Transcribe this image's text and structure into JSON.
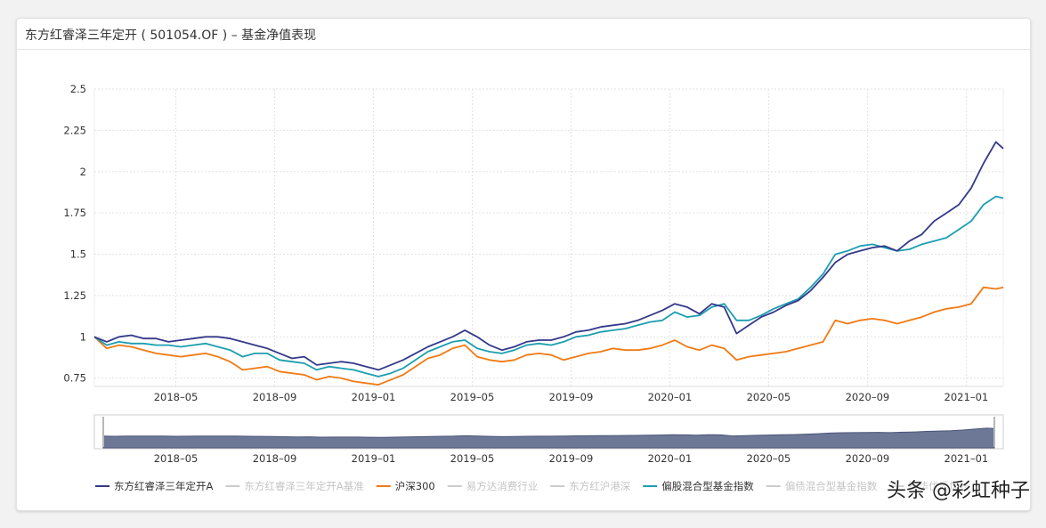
{
  "header": {
    "title": "东方红睿泽三年定开 ( 501054.OF ) – 基金净值表现"
  },
  "watermark": "头条 @彩虹种子",
  "colors": {
    "fund": "#34398a",
    "benchmark": "#cccccc",
    "hs300": "#f07a14",
    "consumer": "#cccccc",
    "hk": "#cccccc",
    "mixed_index": "#1c9eb0",
    "bond_mixed": "#cccccc",
    "yinhua": "#cccccc",
    "grid": "#e3e3e3",
    "axis_text": "#333333"
  },
  "chart_data": {
    "type": "line",
    "yticks": [
      "2.5",
      "2.25",
      "2",
      "1.75",
      "1.5",
      "1.25",
      "1",
      "0.75"
    ],
    "ylim": [
      0.7,
      2.5
    ],
    "xticks": [
      "2018–05",
      "2018–09",
      "2019–01",
      "2019–05",
      "2019–09",
      "2020–01",
      "2020–05",
      "2020–09",
      "2021–01"
    ],
    "xtick_months": [
      4,
      8,
      12,
      16,
      20,
      24,
      28,
      32,
      36
    ],
    "xlim_months": [
      0.7,
      37.5
    ],
    "grid": true,
    "legend_position": "bottom",
    "legend": [
      {
        "name": "东方红睿泽三年定开A",
        "active": true,
        "key": "fund"
      },
      {
        "name": "东方红睿泽三年定开A基准",
        "active": false,
        "key": "benchmark"
      },
      {
        "name": "沪深300",
        "active": true,
        "key": "hs300"
      },
      {
        "name": "易方达消费行业",
        "active": false,
        "key": "consumer"
      },
      {
        "name": "东方红沪港深",
        "active": false,
        "key": "hk"
      },
      {
        "name": "偏股混合型基金指数",
        "active": true,
        "key": "mixed_index"
      },
      {
        "name": "偏债混合型基金指数",
        "active": false,
        "key": "bond_mixed"
      },
      {
        "name": "银华优质增长",
        "active": false,
        "key": "yinhua"
      }
    ],
    "series": [
      {
        "name": "东方红睿泽三年定开A",
        "key": "fund",
        "x": [
          0.7,
          1.2,
          1.7,
          2.2,
          2.7,
          3.2,
          3.7,
          4.2,
          4.7,
          5.2,
          5.7,
          6.2,
          6.7,
          7.2,
          7.7,
          8.2,
          8.7,
          9.2,
          9.7,
          10.2,
          10.7,
          11.2,
          11.7,
          12.2,
          12.7,
          13.2,
          13.7,
          14.2,
          14.7,
          15.2,
          15.7,
          16.2,
          16.7,
          17.2,
          17.7,
          18.2,
          18.7,
          19.2,
          19.7,
          20.2,
          20.7,
          21.2,
          21.7,
          22.2,
          22.7,
          23.2,
          23.7,
          24.2,
          24.7,
          25.2,
          25.7,
          26.2,
          26.7,
          27.2,
          27.7,
          28.2,
          28.7,
          29.2,
          29.7,
          30.2,
          30.7,
          31.2,
          31.7,
          32.2,
          32.7,
          33.2,
          33.7,
          34.2,
          34.7,
          35.2,
          35.7,
          36.2,
          36.7,
          37.2,
          37.5
        ],
        "y": [
          1.0,
          0.97,
          1.0,
          1.01,
          0.99,
          0.99,
          0.97,
          0.98,
          0.99,
          1.0,
          1.0,
          0.99,
          0.97,
          0.95,
          0.93,
          0.9,
          0.87,
          0.88,
          0.83,
          0.84,
          0.85,
          0.84,
          0.82,
          0.8,
          0.83,
          0.86,
          0.9,
          0.94,
          0.97,
          1.0,
          1.04,
          1.0,
          0.95,
          0.92,
          0.94,
          0.97,
          0.98,
          0.98,
          1.0,
          1.03,
          1.04,
          1.06,
          1.07,
          1.08,
          1.1,
          1.13,
          1.16,
          1.2,
          1.18,
          1.14,
          1.2,
          1.18,
          1.02,
          1.07,
          1.12,
          1.15,
          1.19,
          1.22,
          1.28,
          1.36,
          1.45,
          1.5,
          1.52,
          1.54,
          1.55,
          1.52,
          1.58,
          1.62,
          1.7,
          1.75,
          1.8,
          1.9,
          2.05,
          2.18,
          2.14
        ]
      },
      {
        "name": "沪深300",
        "key": "hs300",
        "x": [
          0.7,
          1.2,
          1.7,
          2.2,
          2.7,
          3.2,
          3.7,
          4.2,
          4.7,
          5.2,
          5.7,
          6.2,
          6.7,
          7.2,
          7.7,
          8.2,
          8.7,
          9.2,
          9.7,
          10.2,
          10.7,
          11.2,
          11.7,
          12.2,
          12.7,
          13.2,
          13.7,
          14.2,
          14.7,
          15.2,
          15.7,
          16.2,
          16.7,
          17.2,
          17.7,
          18.2,
          18.7,
          19.2,
          19.7,
          20.2,
          20.7,
          21.2,
          21.7,
          22.2,
          22.7,
          23.2,
          23.7,
          24.2,
          24.7,
          25.2,
          25.7,
          26.2,
          26.7,
          27.2,
          27.7,
          28.2,
          28.7,
          29.2,
          29.7,
          30.2,
          30.7,
          31.2,
          31.7,
          32.2,
          32.7,
          33.2,
          33.7,
          34.2,
          34.7,
          35.2,
          35.7,
          36.2,
          36.7,
          37.2,
          37.5
        ],
        "y": [
          1.0,
          0.93,
          0.95,
          0.94,
          0.92,
          0.9,
          0.89,
          0.88,
          0.89,
          0.9,
          0.88,
          0.85,
          0.8,
          0.81,
          0.82,
          0.79,
          0.78,
          0.77,
          0.74,
          0.76,
          0.75,
          0.73,
          0.72,
          0.71,
          0.74,
          0.77,
          0.82,
          0.87,
          0.89,
          0.93,
          0.95,
          0.88,
          0.86,
          0.85,
          0.86,
          0.89,
          0.9,
          0.89,
          0.86,
          0.88,
          0.9,
          0.91,
          0.93,
          0.92,
          0.92,
          0.93,
          0.95,
          0.98,
          0.94,
          0.92,
          0.95,
          0.93,
          0.86,
          0.88,
          0.89,
          0.9,
          0.91,
          0.93,
          0.95,
          0.97,
          1.1,
          1.08,
          1.1,
          1.11,
          1.1,
          1.08,
          1.1,
          1.12,
          1.15,
          1.17,
          1.18,
          1.2,
          1.3,
          1.29,
          1.3
        ]
      },
      {
        "name": "偏股混合型基金指数",
        "key": "mixed_index",
        "x": [
          0.7,
          1.2,
          1.7,
          2.2,
          2.7,
          3.2,
          3.7,
          4.2,
          4.7,
          5.2,
          5.7,
          6.2,
          6.7,
          7.2,
          7.7,
          8.2,
          8.7,
          9.2,
          9.7,
          10.2,
          10.7,
          11.2,
          11.7,
          12.2,
          12.7,
          13.2,
          13.7,
          14.2,
          14.7,
          15.2,
          15.7,
          16.2,
          16.7,
          17.2,
          17.7,
          18.2,
          18.7,
          19.2,
          19.7,
          20.2,
          20.7,
          21.2,
          21.7,
          22.2,
          22.7,
          23.2,
          23.7,
          24.2,
          24.7,
          25.2,
          25.7,
          26.2,
          26.7,
          27.2,
          27.7,
          28.2,
          28.7,
          29.2,
          29.7,
          30.2,
          30.7,
          31.2,
          31.7,
          32.2,
          32.7,
          33.2,
          33.7,
          34.2,
          34.7,
          35.2,
          35.7,
          36.2,
          36.7,
          37.2,
          37.5
        ],
        "y": [
          1.0,
          0.95,
          0.97,
          0.96,
          0.96,
          0.95,
          0.95,
          0.94,
          0.95,
          0.96,
          0.94,
          0.92,
          0.88,
          0.9,
          0.9,
          0.86,
          0.85,
          0.84,
          0.8,
          0.82,
          0.81,
          0.8,
          0.78,
          0.76,
          0.78,
          0.81,
          0.86,
          0.91,
          0.94,
          0.97,
          0.98,
          0.93,
          0.91,
          0.9,
          0.92,
          0.95,
          0.96,
          0.95,
          0.97,
          1.0,
          1.01,
          1.03,
          1.04,
          1.05,
          1.07,
          1.09,
          1.1,
          1.15,
          1.12,
          1.13,
          1.18,
          1.2,
          1.1,
          1.1,
          1.13,
          1.17,
          1.2,
          1.23,
          1.3,
          1.38,
          1.5,
          1.52,
          1.55,
          1.56,
          1.54,
          1.52,
          1.53,
          1.56,
          1.58,
          1.6,
          1.65,
          1.7,
          1.8,
          1.85,
          1.84
        ]
      }
    ],
    "navigator": {
      "xticks": [
        "2018–05",
        "2018–09",
        "2019–01",
        "2019–05",
        "2019–09",
        "2020–01",
        "2020–05",
        "2020–09",
        "2021–01"
      ]
    }
  }
}
